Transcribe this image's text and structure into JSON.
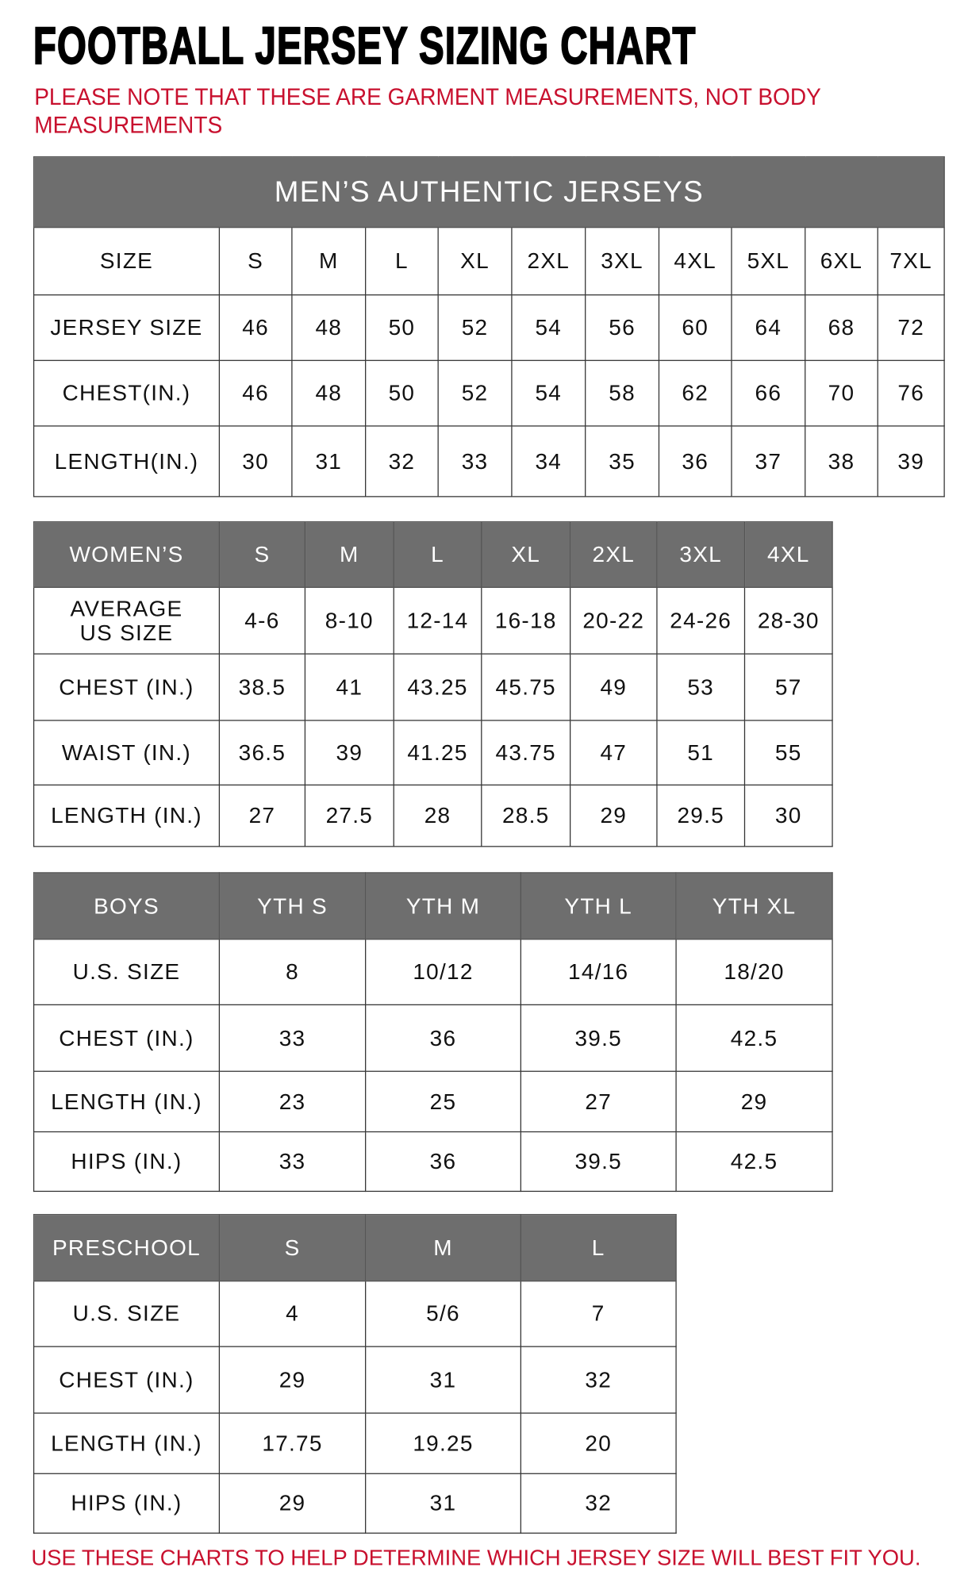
{
  "title": "FOOTBALL JERSEY SIZING CHART",
  "note": "PLEASE NOTE THAT THESE ARE GARMENT MEASUREMENTS, NOT BODY MEASUREMENTS",
  "footer": "USE THESE CHARTS TO HELP DETERMINE WHICH JERSEY SIZE WILL BEST FIT YOU.",
  "colors": {
    "header_bg": "#6e6e6e",
    "note_red": "#c8102e"
  },
  "tables": [
    {
      "id": "mens",
      "banner": "MEN’S AUTHENTIC JERSEYS",
      "header": [
        "SIZE",
        "S",
        "M",
        "L",
        "XL",
        "2XL",
        "3XL",
        "4XL",
        "5XL",
        "6XL",
        "7XL"
      ],
      "header_style": "plain",
      "rows": [
        [
          "JERSEY SIZE",
          "46",
          "48",
          "50",
          "52",
          "54",
          "56",
          "60",
          "64",
          "68",
          "72"
        ],
        [
          "CHEST(IN.)",
          "46",
          "48",
          "50",
          "52",
          "54",
          "58",
          "62",
          "66",
          "70",
          "76"
        ],
        [
          "LENGTH(IN.)",
          "30",
          "31",
          "32",
          "33",
          "34",
          "35",
          "36",
          "37",
          "38",
          "39"
        ]
      ]
    },
    {
      "id": "womens",
      "header": [
        "WOMEN’S",
        "S",
        "M",
        "L",
        "XL",
        "2XL",
        "3XL",
        "4XL"
      ],
      "header_style": "gray",
      "rows": [
        [
          "AVERAGE US SIZE",
          "4-6",
          "8-10",
          "12-14",
          "16-18",
          "20-22",
          "24-26",
          "28-30"
        ],
        [
          "CHEST (IN.)",
          "38.5",
          "41",
          "43.25",
          "45.75",
          "49",
          "53",
          "57"
        ],
        [
          "WAIST (IN.)",
          "36.5",
          "39",
          "41.25",
          "43.75",
          "47",
          "51",
          "55"
        ],
        [
          "LENGTH (IN.)",
          "27",
          "27.5",
          "28",
          "28.5",
          "29",
          "29.5",
          "30"
        ]
      ]
    },
    {
      "id": "boys",
      "header": [
        "BOYS",
        "YTH S",
        "YTH M",
        "YTH L",
        "YTH XL"
      ],
      "header_style": "gray",
      "rows": [
        [
          "U.S. SIZE",
          "8",
          "10/12",
          "14/16",
          "18/20"
        ],
        [
          "CHEST (IN.)",
          "33",
          "36",
          "39.5",
          "42.5"
        ],
        [
          "LENGTH (IN.)",
          "23",
          "25",
          "27",
          "29"
        ],
        [
          "HIPS (IN.)",
          "33",
          "36",
          "39.5",
          "42.5"
        ]
      ]
    },
    {
      "id": "preschool",
      "header": [
        "PRESCHOOL",
        "S",
        "M",
        "L"
      ],
      "header_style": "gray",
      "rows": [
        [
          "U.S. SIZE",
          "4",
          "5/6",
          "7"
        ],
        [
          "CHEST (IN.)",
          "29",
          "31",
          "32"
        ],
        [
          "LENGTH (IN.)",
          "17.75",
          "19.25",
          "20"
        ],
        [
          "HIPS (IN.)",
          "29",
          "31",
          "32"
        ]
      ]
    }
  ]
}
